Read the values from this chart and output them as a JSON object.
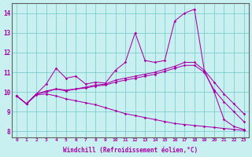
{
  "xlabel": "Windchill (Refroidissement éolien,°C)",
  "xlim": [
    -0.5,
    23.5
  ],
  "ylim": [
    7.7,
    14.5
  ],
  "yticks": [
    8,
    9,
    10,
    11,
    12,
    13,
    14
  ],
  "xticks": [
    0,
    1,
    2,
    3,
    4,
    5,
    6,
    7,
    8,
    9,
    10,
    11,
    12,
    13,
    14,
    15,
    16,
    17,
    18,
    19,
    20,
    21,
    22,
    23
  ],
  "background_color": "#c8f0f0",
  "line_color": "#aa00aa",
  "grid_color": "#7ecece",
  "line1": [
    9.8,
    9.4,
    9.9,
    10.4,
    11.2,
    10.7,
    10.8,
    10.4,
    10.5,
    10.45,
    11.1,
    11.5,
    13.0,
    11.6,
    11.5,
    11.6,
    13.6,
    14.0,
    14.2,
    11.1,
    10.0,
    8.6,
    8.25,
    8.1
  ],
  "line2": [
    9.8,
    9.4,
    9.9,
    10.05,
    10.15,
    10.1,
    10.15,
    10.25,
    10.35,
    10.4,
    10.6,
    10.7,
    10.8,
    10.9,
    11.0,
    11.15,
    11.3,
    11.5,
    11.5,
    11.1,
    10.5,
    9.9,
    9.4,
    8.9
  ],
  "line3": [
    9.8,
    9.4,
    9.9,
    10.0,
    10.15,
    10.05,
    10.15,
    10.2,
    10.3,
    10.35,
    10.5,
    10.6,
    10.7,
    10.8,
    10.9,
    11.05,
    11.2,
    11.35,
    11.35,
    11.0,
    10.1,
    9.5,
    9.0,
    8.5
  ],
  "line4": [
    9.8,
    9.4,
    9.85,
    9.9,
    9.8,
    9.65,
    9.55,
    9.45,
    9.35,
    9.2,
    9.05,
    8.9,
    8.8,
    8.7,
    8.6,
    8.5,
    8.4,
    8.35,
    8.3,
    8.25,
    8.2,
    8.15,
    8.1,
    8.05
  ]
}
